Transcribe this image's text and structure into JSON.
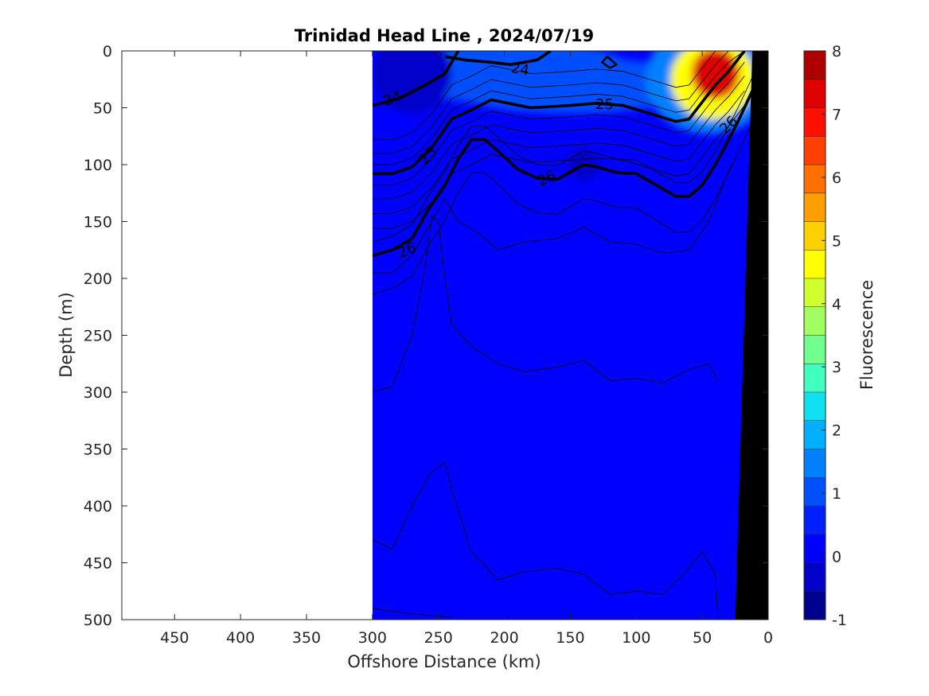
{
  "chart_data": {
    "type": "heatmap",
    "title": "Trinidad Head Line , 2024/07/19",
    "xlabel": "Offshore Distance (km)",
    "ylabel": "Depth (m)",
    "xlim": [
      490,
      0
    ],
    "ylim": [
      0,
      500
    ],
    "x_reversed": true,
    "y_reversed": true,
    "x_ticks": [
      450,
      400,
      350,
      300,
      250,
      200,
      150,
      100,
      50,
      0
    ],
    "y_ticks": [
      0,
      50,
      100,
      150,
      200,
      250,
      300,
      350,
      400,
      450,
      500
    ],
    "data_extent_x": [
      0,
      300
    ],
    "colorbar": {
      "label": "Fluorescence",
      "min": -1,
      "max": 8,
      "ticks": [
        -1,
        0,
        1,
        2,
        3,
        4,
        5,
        6,
        7,
        8
      ],
      "colors": [
        "#00008f",
        "#0000c8",
        "#0000ff",
        "#0020ff",
        "#0050ff",
        "#0080ff",
        "#00b0ff",
        "#10e0ef",
        "#40ffbf",
        "#70ff8f",
        "#a0ff60",
        "#d0ff30",
        "#ffff00",
        "#ffd000",
        "#ffa000",
        "#ff7000",
        "#ff4000",
        "#ff1000",
        "#df0000",
        "#af0000"
      ]
    },
    "background_fluorescence": 0.3,
    "fluorescence_patches": [
      {
        "x": 40,
        "depth": 20,
        "rx": 18,
        "ry": 22,
        "value": 7.2
      },
      {
        "x": 42,
        "depth": 25,
        "rx": 32,
        "ry": 35,
        "value": 4.5
      },
      {
        "x": 45,
        "depth": 25,
        "rx": 48,
        "ry": 48,
        "value": 1.6
      },
      {
        "x": 150,
        "depth": 30,
        "rx": 95,
        "ry": 25,
        "value": 0.9
      },
      {
        "x": 190,
        "depth": 20,
        "rx": 90,
        "ry": 28,
        "value": 0.8
      },
      {
        "x": 270,
        "depth": 20,
        "rx": 30,
        "ry": 35,
        "value": -0.3
      },
      {
        "x": 140,
        "depth": 100,
        "rx": 12,
        "ry": 15,
        "value": -0.2
      }
    ],
    "density_contours": [
      {
        "level": 24,
        "bold": true,
        "points": [
          [
            300,
            48
          ],
          [
            280,
            42
          ],
          [
            260,
            30
          ],
          [
            245,
            20
          ],
          [
            235,
            0
          ]
        ]
      },
      {
        "level": 24,
        "bold": true,
        "points": [
          [
            245,
            5
          ],
          [
            230,
            8
          ],
          [
            210,
            10
          ],
          [
            195,
            12
          ],
          [
            175,
            8
          ],
          [
            165,
            0
          ]
        ]
      },
      {
        "level": 24,
        "bold": false,
        "points": [
          [
            120,
            15
          ],
          [
            115,
            12
          ],
          [
            122,
            5
          ],
          [
            126,
            10
          ],
          [
            120,
            15
          ]
        ]
      },
      {
        "level": 25,
        "bold": true,
        "points": [
          [
            300,
            108
          ],
          [
            285,
            108
          ],
          [
            270,
            102
          ],
          [
            255,
            85
          ],
          [
            240,
            60
          ],
          [
            225,
            52
          ],
          [
            210,
            43
          ],
          [
            180,
            50
          ],
          [
            150,
            48
          ],
          [
            130,
            46
          ],
          [
            110,
            48
          ],
          [
            90,
            55
          ],
          [
            70,
            62
          ],
          [
            60,
            60
          ],
          [
            50,
            45
          ],
          [
            40,
            30
          ],
          [
            30,
            18
          ],
          [
            18,
            0
          ]
        ]
      },
      {
        "level": 26,
        "bold": true,
        "points": [
          [
            300,
            180
          ],
          [
            285,
            175
          ],
          [
            270,
            165
          ],
          [
            258,
            140
          ],
          [
            245,
            118
          ],
          [
            235,
            95
          ],
          [
            225,
            78
          ],
          [
            215,
            78
          ],
          [
            205,
            88
          ],
          [
            190,
            104
          ],
          [
            175,
            112
          ],
          [
            160,
            113
          ],
          [
            140,
            100
          ],
          [
            130,
            102
          ],
          [
            115,
            107
          ],
          [
            100,
            108
          ],
          [
            85,
            118
          ],
          [
            70,
            128
          ],
          [
            60,
            128
          ],
          [
            50,
            118
          ],
          [
            40,
            100
          ],
          [
            30,
            78
          ],
          [
            22,
            60
          ],
          [
            12,
            35
          ]
        ]
      }
    ],
    "contour_labels": [
      {
        "text": "24",
        "x": 285,
        "depth": 42,
        "angle": -20
      },
      {
        "text": "24",
        "x": 188,
        "depth": 16,
        "angle": 10
      },
      {
        "text": "25",
        "x": 258,
        "depth": 92,
        "angle": -45
      },
      {
        "text": "25",
        "x": 124,
        "depth": 47,
        "angle": 0
      },
      {
        "text": "26",
        "x": 274,
        "depth": 175,
        "angle": -25
      },
      {
        "text": "26",
        "x": 168,
        "depth": 112,
        "angle": -25
      },
      {
        "text": "26",
        "x": 30,
        "depth": 65,
        "angle": -45
      }
    ],
    "bathymetry": [
      [
        12,
        0
      ],
      [
        0,
        0
      ],
      [
        0,
        500
      ],
      [
        25,
        500
      ]
    ],
    "white_gap": [
      [
        12,
        0
      ],
      [
        0,
        0
      ],
      [
        0,
        2
      ],
      [
        12,
        80
      ]
    ]
  }
}
